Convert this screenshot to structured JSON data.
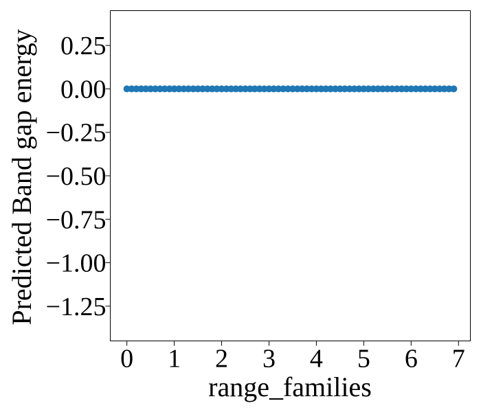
{
  "chart_data": {
    "type": "scatter",
    "title": "",
    "xlabel": "range_families",
    "ylabel": "Predicted Band gap energy",
    "xlim": [
      -0.35,
      7.25
    ],
    "ylim": [
      -1.45,
      0.45
    ],
    "xticks": [
      0,
      1,
      2,
      3,
      4,
      5,
      6,
      7
    ],
    "xtick_labels": [
      "0",
      "1",
      "2",
      "3",
      "4",
      "5",
      "6",
      "7"
    ],
    "yticks": [
      0.25,
      0.0,
      -0.25,
      -0.5,
      -0.75,
      -1.0,
      -1.25
    ],
    "ytick_labels": [
      "0.25",
      "0.00",
      "−0.25",
      "−0.50",
      "−0.75",
      "−1.00",
      "−1.25"
    ],
    "grid": false,
    "marker_color": "#1f77b4",
    "series": [
      {
        "x": [
          0.0,
          0.1,
          0.2,
          0.3,
          0.4,
          0.5,
          0.6,
          0.7,
          0.8,
          0.9,
          1.0,
          1.1,
          1.2,
          1.3,
          1.4,
          1.5,
          1.6,
          1.7,
          1.8,
          1.9,
          2.0,
          2.1,
          2.2,
          2.3,
          2.4,
          2.5,
          2.6,
          2.7,
          2.8,
          2.9,
          3.0,
          3.1,
          3.2,
          3.3,
          3.4,
          3.5,
          3.6,
          3.7,
          3.8,
          3.9,
          4.0,
          4.1,
          4.2,
          4.3,
          4.4,
          4.5,
          4.6,
          4.7,
          4.8,
          4.9,
          5.0,
          5.1,
          5.2,
          5.3,
          5.4,
          5.5,
          5.6,
          5.7,
          5.8,
          5.9,
          6.0,
          6.1,
          6.2,
          6.3,
          6.4,
          6.5,
          6.6,
          6.7,
          6.8,
          6.9
        ],
        "y": [
          0,
          0,
          0,
          0,
          0,
          0,
          0,
          0,
          0,
          0,
          0,
          0,
          0,
          0,
          0,
          0,
          0,
          0,
          0,
          0,
          0,
          0,
          0,
          0,
          0,
          0,
          0,
          0,
          0,
          0,
          0,
          0,
          0,
          0,
          0,
          0,
          0,
          0,
          0,
          0,
          0,
          0,
          0,
          0,
          0,
          0,
          0,
          0,
          0,
          0,
          0,
          0,
          0,
          0,
          0,
          0,
          0,
          0,
          0,
          0,
          0,
          0,
          0,
          0,
          0,
          0,
          0,
          0,
          0,
          0
        ]
      }
    ]
  }
}
